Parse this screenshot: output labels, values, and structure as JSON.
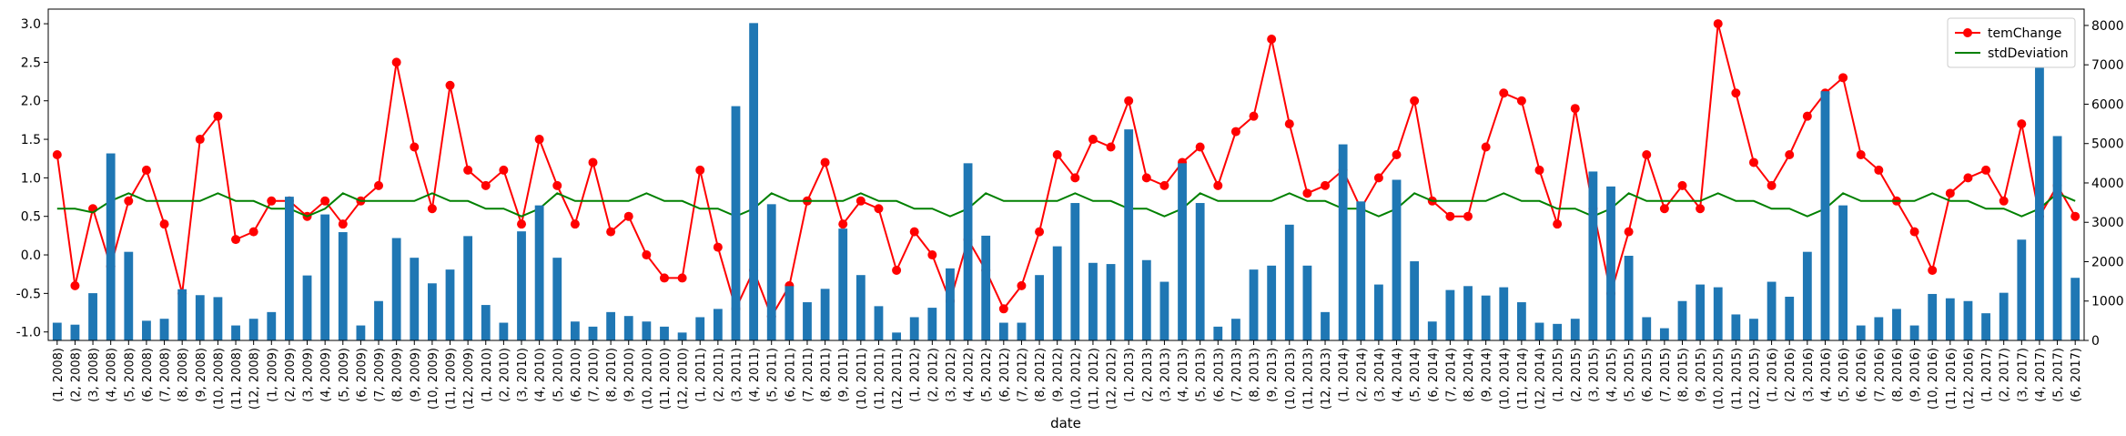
{
  "chart_data": {
    "type": "bar",
    "xlabel": "date",
    "categories": [
      "(1, 2008)",
      "(2, 2008)",
      "(3, 2008)",
      "(4, 2008)",
      "(5, 2008)",
      "(6, 2008)",
      "(7, 2008)",
      "(8, 2008)",
      "(9, 2008)",
      "(10, 2008)",
      "(11, 2008)",
      "(12, 2008)",
      "(1, 2009)",
      "(2, 2009)",
      "(3, 2009)",
      "(4, 2009)",
      "(5, 2009)",
      "(6, 2009)",
      "(7, 2009)",
      "(8, 2009)",
      "(9, 2009)",
      "(10, 2009)",
      "(11, 2009)",
      "(12, 2009)",
      "(1, 2010)",
      "(2, 2010)",
      "(3, 2010)",
      "(4, 2010)",
      "(5, 2010)",
      "(6, 2010)",
      "(7, 2010)",
      "(8, 2010)",
      "(9, 2010)",
      "(10, 2010)",
      "(11, 2010)",
      "(12, 2010)",
      "(1, 2011)",
      "(2, 2011)",
      "(3, 2011)",
      "(4, 2011)",
      "(5, 2011)",
      "(6, 2011)",
      "(7, 2011)",
      "(8, 2011)",
      "(9, 2011)",
      "(10, 2011)",
      "(11, 2011)",
      "(12, 2011)",
      "(1, 2012)",
      "(2, 2012)",
      "(3, 2012)",
      "(4, 2012)",
      "(5, 2012)",
      "(6, 2012)",
      "(7, 2012)",
      "(8, 2012)",
      "(9, 2012)",
      "(10, 2012)",
      "(11, 2012)",
      "(12, 2012)",
      "(1, 2013)",
      "(2, 2013)",
      "(3, 2013)",
      "(4, 2013)",
      "(5, 2013)",
      "(6, 2013)",
      "(7, 2013)",
      "(8, 2013)",
      "(9, 2013)",
      "(10, 2013)",
      "(11, 2013)",
      "(12, 2013)",
      "(1, 2014)",
      "(2, 2014)",
      "(3, 2014)",
      "(4, 2014)",
      "(5, 2014)",
      "(6, 2014)",
      "(7, 2014)",
      "(8, 2014)",
      "(9, 2014)",
      "(10, 2014)",
      "(11, 2014)",
      "(12, 2014)",
      "(1, 2015)",
      "(2, 2015)",
      "(3, 2015)",
      "(4, 2015)",
      "(5, 2015)",
      "(6, 2015)",
      "(7, 2015)",
      "(8, 2015)",
      "(9, 2015)",
      "(10, 2015)",
      "(11, 2015)",
      "(12, 2015)",
      "(1, 2016)",
      "(2, 2016)",
      "(3, 2016)",
      "(4, 2016)",
      "(5, 2016)",
      "(6, 2016)",
      "(7, 2016)",
      "(8, 2016)",
      "(9, 2016)",
      "(10, 2016)",
      "(11, 2016)",
      "(12, 2016)",
      "(1, 2017)",
      "(2, 2017)",
      "(3, 2017)",
      "(4, 2017)",
      "(5, 2017)",
      "(6, 2017)"
    ],
    "series": [
      {
        "name": "temChange",
        "type": "line",
        "marker": true,
        "color": "#ff0000",
        "values": [
          1.3,
          -0.4,
          0.6,
          -0.15,
          0.7,
          1.1,
          0.4,
          -0.5,
          1.5,
          1.8,
          0.2,
          0.3,
          0.7,
          0.7,
          0.5,
          0.7,
          0.4,
          0.7,
          0.9,
          2.5,
          1.4,
          0.6,
          2.2,
          1.1,
          0.9,
          1.1,
          0.4,
          1.5,
          0.9,
          0.4,
          1.2,
          0.3,
          0.5,
          0.0,
          -0.3,
          -0.3,
          1.1,
          0.1,
          -0.7,
          -0.2,
          -0.8,
          -0.4,
          0.7,
          1.2,
          0.4,
          0.7,
          0.6,
          -0.2,
          0.3,
          0.0,
          -0.6,
          0.2,
          -0.2,
          -0.7,
          -0.4,
          0.3,
          1.3,
          1.0,
          1.5,
          1.4,
          2.0,
          1.0,
          0.9,
          1.2,
          1.4,
          0.9,
          1.6,
          1.8,
          2.8,
          1.7,
          0.8,
          0.9,
          1.1,
          0.6,
          1.0,
          1.3,
          2.0,
          0.7,
          0.5,
          0.5,
          1.4,
          2.1,
          2.0,
          1.1,
          0.4,
          1.9,
          0.6,
          -0.5,
          0.3,
          1.3,
          0.6,
          0.9,
          0.6,
          3.0,
          2.1,
          1.2,
          0.9,
          1.3,
          1.8,
          2.1,
          2.3,
          1.3,
          1.1,
          0.7,
          0.3,
          -0.2,
          0.8,
          1.0,
          1.1,
          0.7,
          1.7,
          0.5,
          0.9,
          0.5
        ]
      },
      {
        "name": "stdDeviation",
        "type": "line",
        "marker": false,
        "color": "#008000",
        "values": [
          0.6,
          0.6,
          0.55,
          0.7,
          0.8,
          0.7,
          0.7,
          0.7,
          0.7,
          0.8,
          0.7,
          0.7,
          0.6,
          0.6,
          0.5,
          0.6,
          0.8,
          0.7,
          0.7,
          0.7,
          0.7,
          0.8,
          0.7,
          0.7,
          0.6,
          0.6,
          0.5,
          0.6,
          0.8,
          0.7,
          0.7,
          0.7,
          0.7,
          0.8,
          0.7,
          0.7,
          0.6,
          0.6,
          0.5,
          0.6,
          0.8,
          0.7,
          0.7,
          0.7,
          0.7,
          0.8,
          0.7,
          0.7,
          0.6,
          0.6,
          0.5,
          0.6,
          0.8,
          0.7,
          0.7,
          0.7,
          0.7,
          0.8,
          0.7,
          0.7,
          0.6,
          0.6,
          0.5,
          0.6,
          0.8,
          0.7,
          0.7,
          0.7,
          0.7,
          0.8,
          0.7,
          0.7,
          0.6,
          0.6,
          0.5,
          0.6,
          0.8,
          0.7,
          0.7,
          0.7,
          0.7,
          0.8,
          0.7,
          0.7,
          0.6,
          0.6,
          0.5,
          0.6,
          0.8,
          0.7,
          0.7,
          0.7,
          0.7,
          0.8,
          0.7,
          0.7,
          0.6,
          0.6,
          0.5,
          0.6,
          0.8,
          0.7,
          0.7,
          0.7,
          0.7,
          0.8,
          0.7,
          0.7,
          0.6,
          0.6,
          0.5,
          0.6,
          0.8,
          0.7
        ]
      },
      {
        "type": "bar",
        "axis": "y2",
        "color": "#1f77b4",
        "values": [
          450,
          400,
          1200,
          4750,
          2250,
          500,
          550,
          1300,
          1150,
          1100,
          380,
          550,
          720,
          3650,
          1650,
          3200,
          2750,
          380,
          1000,
          2600,
          2100,
          1450,
          1800,
          2650,
          900,
          450,
          2770,
          3430,
          2100,
          480,
          350,
          720,
          620,
          480,
          350,
          200,
          590,
          800,
          5950,
          8060,
          3460,
          1380,
          970,
          1310,
          2840,
          1660,
          870,
          200,
          590,
          830,
          1830,
          4500,
          2660,
          450,
          450,
          1660,
          2390,
          3490,
          1970,
          1940,
          5360,
          2040,
          1490,
          4500,
          3490,
          350,
          550,
          1800,
          1900,
          2940,
          1900,
          720,
          4980,
          3530,
          1420,
          4080,
          2010,
          480,
          1280,
          1380,
          1140,
          1350,
          970,
          450,
          420,
          550,
          4290,
          3910,
          2150,
          590,
          310,
          1000,
          1420,
          1350,
          660,
          550,
          1490,
          1110,
          2250,
          6330,
          3430,
          380,
          590,
          800,
          380,
          1180,
          1070,
          1000,
          690,
          1210,
          2560,
          6990,
          5190,
          1590
        ]
      }
    ],
    "ylim": [
      -1.11,
      3.19
    ],
    "yticks": [
      {
        "value": -1.0,
        "label": "-1.0"
      },
      -0.5,
      {
        "value": 0.0,
        "label": "0.0"
      },
      0.5,
      {
        "value": 1.0,
        "label": "1.0"
      },
      1.5,
      {
        "value": 2.0,
        "label": "2.0"
      },
      2.5,
      {
        "value": 3.0,
        "label": "3.0"
      }
    ],
    "y2lim": [
      0,
      8415
    ],
    "y2ticks": [
      0,
      1000,
      2000,
      3000,
      4000,
      5000,
      6000,
      7000,
      8000
    ],
    "legend": "upper right"
  }
}
